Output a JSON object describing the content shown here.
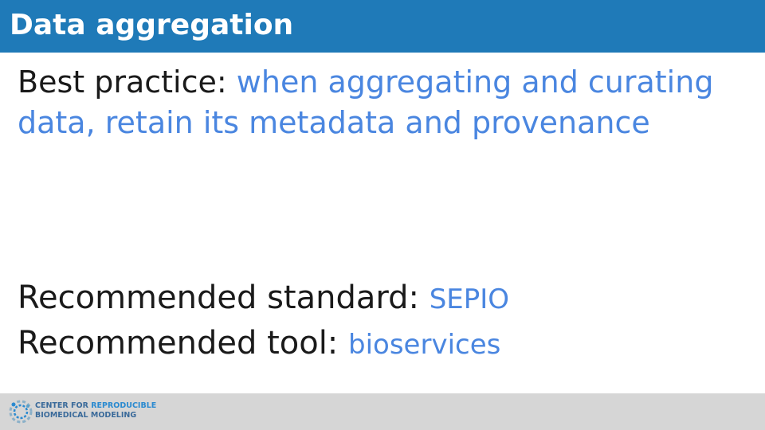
{
  "slide": {
    "title": "Data aggregation",
    "best_practice": {
      "label": "Best practice:",
      "text": "when aggregating and curating data, retain its metadata and provenance"
    },
    "recommended_standard": {
      "label": "Recommended standard:",
      "value": "SEPIO"
    },
    "recommended_tool": {
      "label": "Recommended tool:",
      "value": "bioservices"
    }
  },
  "footer": {
    "logo": {
      "line1_part1": "CENTER FOR",
      "line1_part2": "REPRODUCIBLE",
      "line2": "BIOMEDICAL MODELING"
    }
  },
  "colors": {
    "title_bar": "#1f7ab8",
    "accent": "#4a86e0",
    "footer": "#d6d6d6"
  }
}
